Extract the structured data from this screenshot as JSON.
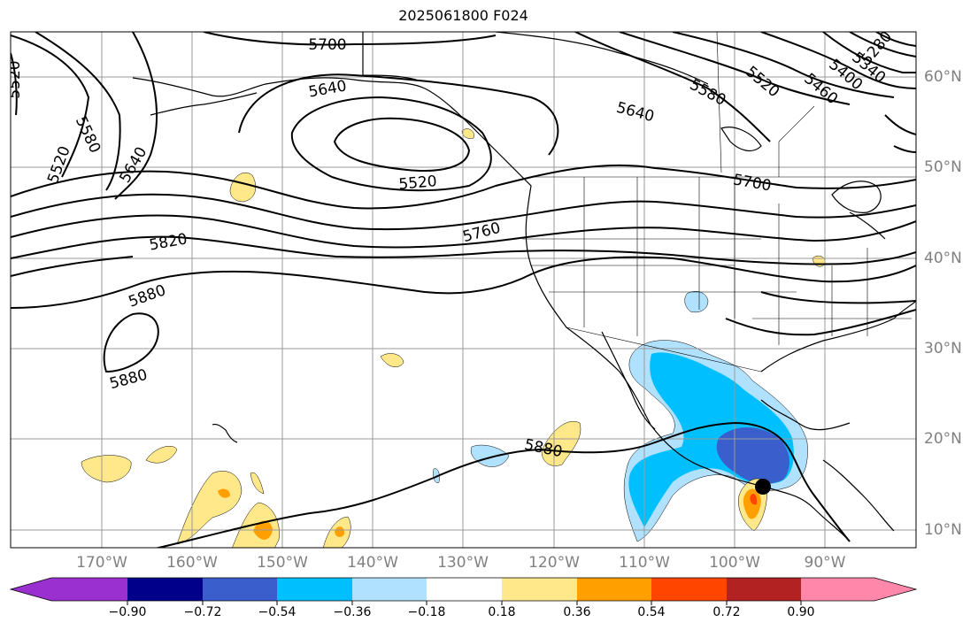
{
  "title": "2025061800 F024",
  "lon_labels": [
    "170°W",
    "160°W",
    "150°W",
    "140°W",
    "130°W",
    "120°W",
    "110°W",
    "100°W",
    "90°W"
  ],
  "lat_labels": [
    "60°N",
    "50°N",
    "40°N",
    "30°N",
    "20°N",
    "10°N"
  ],
  "contour_labels": [
    "5700",
    "5640",
    "5580",
    "5520",
    "5460",
    "5400",
    "5340",
    "5280",
    "5640",
    "5520",
    "5580",
    "5640",
    "5520",
    "5700",
    "5760",
    "5820",
    "5880",
    "5880",
    "5880",
    "5520"
  ],
  "colorbar": {
    "ticks": [
      "−0.90",
      "−0.72",
      "−0.54",
      "−0.36",
      "−0.18",
      "0.18",
      "0.36",
      "0.54",
      "0.72",
      "0.90"
    ],
    "colors": [
      "#9b30d0",
      "#00008b",
      "#3a5fcd",
      "#00bfff",
      "#b0e2ff",
      "#ffffff",
      "#ffe88a",
      "#ffa000",
      "#ff4500",
      "#b22222",
      "#ff88aa"
    ]
  },
  "colors": {
    "shade_light_blue": "#b0e2ff",
    "shade_blue": "#00bfff",
    "shade_dark_blue": "#3a5fcd",
    "shade_yellow": "#ffe88a",
    "shade_orange": "#ffa000",
    "shade_red": "#ff4500"
  }
}
